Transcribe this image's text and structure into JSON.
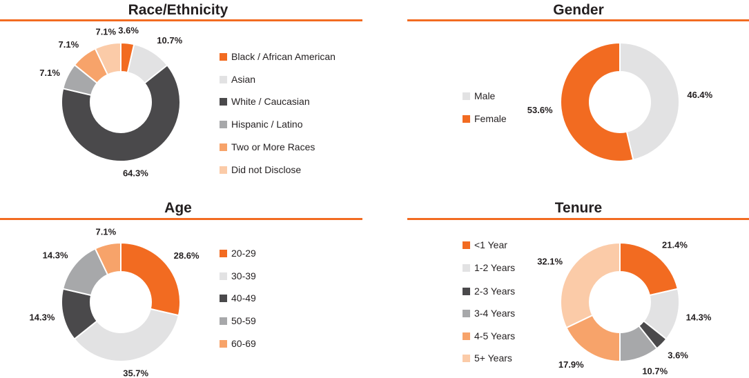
{
  "colors": {
    "orange": "#f26b21",
    "light_gray": "#e2e2e3",
    "dark_gray": "#4a494b",
    "mid_gray": "#a7a8aa",
    "light_orange": "#f7a36a",
    "peach": "#fbcba8",
    "rule": "#f26b21"
  },
  "chart_data": [
    {
      "type": "pie",
      "id": "race",
      "title": "Race/Ethnicity",
      "donut": true,
      "categories": [
        "Black / African American",
        "Asian",
        "White / Caucasian",
        "Hispanic / Latino",
        "Two or More Races",
        "Did not Disclose"
      ],
      "values": [
        3.6,
        10.7,
        64.3,
        7.1,
        7.1,
        7.1
      ],
      "labels": [
        "3.6%",
        "10.7%",
        "64.3%",
        "7.1%",
        "7.1%",
        "7.1%"
      ],
      "colors": [
        "#f26b21",
        "#e2e2e3",
        "#4a494b",
        "#a7a8aa",
        "#f7a36a",
        "#fbcba8"
      ],
      "legend": "right"
    },
    {
      "type": "pie",
      "id": "gender",
      "title": "Gender",
      "donut": true,
      "categories": [
        "Male",
        "Female"
      ],
      "values": [
        46.4,
        53.6
      ],
      "labels": [
        "46.4%",
        "53.6%"
      ],
      "colors": [
        "#e2e2e3",
        "#f26b21"
      ],
      "legend": "left"
    },
    {
      "type": "pie",
      "id": "age",
      "title": "Age",
      "donut": true,
      "categories": [
        "20-29",
        "30-39",
        "40-49",
        "50-59",
        "60-69"
      ],
      "values": [
        28.6,
        35.7,
        14.3,
        14.3,
        7.1
      ],
      "labels": [
        "28.6%",
        "35.7%",
        "14.3%",
        "14.3%",
        "7.1%"
      ],
      "colors": [
        "#f26b21",
        "#e2e2e3",
        "#4a494b",
        "#a7a8aa",
        "#f7a36a"
      ],
      "legend": "right"
    },
    {
      "type": "pie",
      "id": "tenure",
      "title": "Tenure",
      "donut": true,
      "categories": [
        "<1 Year",
        "1-2 Years",
        "2-3 Years",
        "3-4 Years",
        "4-5 Years",
        "5+ Years"
      ],
      "values": [
        21.4,
        14.3,
        3.6,
        10.7,
        17.9,
        32.1
      ],
      "labels": [
        "21.4%",
        "14.3%",
        "3.6%",
        "10.7%",
        "17.9%",
        "32.1%"
      ],
      "colors": [
        "#f26b21",
        "#e2e2e3",
        "#4a494b",
        "#a7a8aa",
        "#f7a36a",
        "#fbcba8"
      ],
      "legend": "left"
    }
  ]
}
